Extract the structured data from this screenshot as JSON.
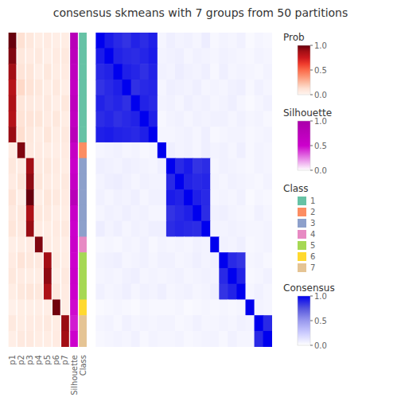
{
  "chart_data": {
    "type": "heatmap",
    "title": "consensus skmeans with 7 groups from 50 partitions",
    "grid": false,
    "color_bar": "Consensus",
    "values": [
      [
        1.0,
        0.92,
        0.88,
        0.85,
        0.9,
        0.87,
        0.91,
        0.05,
        0.08,
        0.06,
        0.07,
        0.05,
        0.09,
        0.04,
        0.06,
        0.05,
        0.07,
        0.03,
        0.05,
        0.04
      ],
      [
        0.92,
        1.0,
        0.9,
        0.88,
        0.87,
        0.89,
        0.92,
        0.06,
        0.07,
        0.08,
        0.05,
        0.07,
        0.06,
        0.05,
        0.07,
        0.06,
        0.05,
        0.04,
        0.06,
        0.05
      ],
      [
        0.88,
        0.9,
        1.0,
        0.91,
        0.89,
        0.86,
        0.9,
        0.07,
        0.06,
        0.09,
        0.07,
        0.06,
        0.08,
        0.04,
        0.08,
        0.05,
        0.06,
        0.05,
        0.04,
        0.06
      ],
      [
        0.85,
        0.88,
        0.91,
        1.0,
        0.86,
        0.88,
        0.89,
        0.05,
        0.08,
        0.07,
        0.06,
        0.08,
        0.05,
        0.06,
        0.05,
        0.07,
        0.08,
        0.04,
        0.07,
        0.05
      ],
      [
        0.9,
        0.87,
        0.89,
        0.86,
        1.0,
        0.9,
        0.88,
        0.06,
        0.07,
        0.05,
        0.08,
        0.06,
        0.07,
        0.05,
        0.06,
        0.08,
        0.05,
        0.03,
        0.05,
        0.07
      ],
      [
        0.87,
        0.89,
        0.86,
        0.88,
        0.9,
        1.0,
        0.91,
        0.04,
        0.06,
        0.07,
        0.05,
        0.07,
        0.06,
        0.07,
        0.07,
        0.05,
        0.07,
        0.05,
        0.06,
        0.04
      ],
      [
        0.91,
        0.92,
        0.9,
        0.89,
        0.88,
        0.91,
        1.0,
        0.05,
        0.05,
        0.06,
        0.07,
        0.05,
        0.08,
        0.04,
        0.05,
        0.06,
        0.06,
        0.04,
        0.05,
        0.06
      ],
      [
        0.05,
        0.06,
        0.07,
        0.05,
        0.06,
        0.04,
        0.05,
        1.0,
        0.08,
        0.06,
        0.07,
        0.05,
        0.08,
        0.06,
        0.07,
        0.05,
        0.08,
        0.04,
        0.06,
        0.05
      ],
      [
        0.08,
        0.07,
        0.06,
        0.08,
        0.07,
        0.06,
        0.05,
        0.08,
        1.0,
        0.88,
        0.92,
        0.85,
        0.87,
        0.05,
        0.07,
        0.06,
        0.05,
        0.04,
        0.06,
        0.05
      ],
      [
        0.06,
        0.08,
        0.09,
        0.07,
        0.05,
        0.07,
        0.06,
        0.06,
        0.88,
        1.0,
        0.9,
        0.88,
        0.89,
        0.06,
        0.05,
        0.07,
        0.06,
        0.05,
        0.04,
        0.06
      ],
      [
        0.07,
        0.05,
        0.07,
        0.06,
        0.08,
        0.05,
        0.07,
        0.07,
        0.92,
        0.9,
        1.0,
        0.91,
        0.88,
        0.05,
        0.06,
        0.05,
        0.07,
        0.03,
        0.05,
        0.04
      ],
      [
        0.05,
        0.07,
        0.06,
        0.08,
        0.06,
        0.07,
        0.05,
        0.05,
        0.85,
        0.88,
        0.91,
        1.0,
        0.87,
        0.07,
        0.08,
        0.06,
        0.05,
        0.04,
        0.07,
        0.05
      ],
      [
        0.09,
        0.06,
        0.08,
        0.05,
        0.07,
        0.06,
        0.08,
        0.08,
        0.87,
        0.89,
        0.88,
        0.87,
        1.0,
        0.06,
        0.06,
        0.07,
        0.06,
        0.05,
        0.05,
        0.06
      ],
      [
        0.04,
        0.05,
        0.04,
        0.06,
        0.05,
        0.07,
        0.04,
        0.06,
        0.05,
        0.06,
        0.05,
        0.07,
        0.06,
        1.0,
        0.07,
        0.06,
        0.08,
        0.04,
        0.05,
        0.06
      ],
      [
        0.06,
        0.07,
        0.08,
        0.05,
        0.06,
        0.07,
        0.05,
        0.07,
        0.07,
        0.05,
        0.06,
        0.08,
        0.06,
        0.07,
        1.0,
        0.88,
        0.85,
        0.05,
        0.06,
        0.04
      ],
      [
        0.05,
        0.06,
        0.05,
        0.07,
        0.08,
        0.05,
        0.06,
        0.05,
        0.06,
        0.07,
        0.05,
        0.06,
        0.07,
        0.06,
        0.88,
        1.0,
        0.9,
        0.04,
        0.05,
        0.07
      ],
      [
        0.07,
        0.05,
        0.06,
        0.08,
        0.05,
        0.07,
        0.06,
        0.08,
        0.05,
        0.06,
        0.07,
        0.05,
        0.06,
        0.08,
        0.85,
        0.9,
        1.0,
        0.05,
        0.07,
        0.05
      ],
      [
        0.03,
        0.04,
        0.05,
        0.04,
        0.03,
        0.05,
        0.04,
        0.04,
        0.04,
        0.05,
        0.03,
        0.04,
        0.05,
        0.04,
        0.05,
        0.04,
        0.05,
        1.0,
        0.06,
        0.05
      ],
      [
        0.05,
        0.06,
        0.04,
        0.07,
        0.05,
        0.06,
        0.05,
        0.06,
        0.06,
        0.04,
        0.05,
        0.07,
        0.05,
        0.05,
        0.06,
        0.05,
        0.07,
        0.06,
        1.0,
        0.88
      ],
      [
        0.04,
        0.05,
        0.06,
        0.05,
        0.07,
        0.04,
        0.06,
        0.05,
        0.05,
        0.06,
        0.04,
        0.05,
        0.06,
        0.06,
        0.04,
        0.07,
        0.05,
        0.05,
        0.88,
        1.0
      ]
    ],
    "columns": [
      {
        "name": "p1",
        "color_bar": "Prob",
        "values": [
          1.0,
          0.95,
          0.88,
          0.82,
          0.85,
          0.83,
          0.9,
          0.05,
          0.08,
          0.06,
          0.1,
          0.07,
          0.09,
          0.04,
          0.06,
          0.08,
          0.05,
          0.03,
          0.07,
          0.04
        ]
      },
      {
        "name": "p2",
        "color_bar": "Prob",
        "values": [
          0.12,
          0.08,
          0.1,
          0.15,
          0.09,
          0.11,
          0.13,
          0.95,
          0.06,
          0.09,
          0.04,
          0.08,
          0.07,
          0.05,
          0.1,
          0.06,
          0.08,
          0.04,
          0.05,
          0.07
        ]
      },
      {
        "name": "p3",
        "color_bar": "Prob",
        "values": [
          0.08,
          0.06,
          0.09,
          0.11,
          0.07,
          0.1,
          0.08,
          0.07,
          0.88,
          0.92,
          1.0,
          0.85,
          0.9,
          0.06,
          0.08,
          0.05,
          0.09,
          0.04,
          0.06,
          0.07
        ]
      },
      {
        "name": "p4",
        "color_bar": "Prob",
        "values": [
          0.05,
          0.07,
          0.04,
          0.08,
          0.06,
          0.09,
          0.05,
          0.06,
          0.07,
          0.09,
          0.05,
          0.08,
          0.06,
          0.95,
          0.07,
          0.05,
          0.08,
          0.04,
          0.06,
          0.05
        ]
      },
      {
        "name": "p5",
        "color_bar": "Prob",
        "values": [
          0.06,
          0.04,
          0.08,
          0.05,
          0.07,
          0.06,
          0.09,
          0.05,
          0.08,
          0.06,
          0.09,
          0.07,
          0.05,
          0.06,
          0.88,
          0.92,
          0.85,
          0.04,
          0.07,
          0.05
        ]
      },
      {
        "name": "p6",
        "color_bar": "Prob",
        "values": [
          0.04,
          0.06,
          0.05,
          0.07,
          0.04,
          0.08,
          0.05,
          0.04,
          0.06,
          0.05,
          0.07,
          0.04,
          0.06,
          0.05,
          0.06,
          0.04,
          0.07,
          0.98,
          0.05,
          0.06
        ]
      },
      {
        "name": "p7",
        "color_bar": "Prob",
        "values": [
          0.05,
          0.07,
          0.06,
          0.04,
          0.08,
          0.05,
          0.07,
          0.06,
          0.05,
          0.07,
          0.06,
          0.05,
          0.07,
          0.04,
          0.05,
          0.07,
          0.06,
          0.05,
          0.9,
          0.88
        ]
      },
      {
        "name": "Silhouette",
        "color_bar": "Silhouette",
        "values": [
          0.8,
          0.75,
          0.7,
          0.65,
          0.72,
          0.68,
          0.78,
          0.6,
          0.55,
          0.62,
          0.8,
          0.58,
          0.52,
          0.55,
          0.5,
          0.55,
          0.52,
          0.48,
          0.45,
          0.5
        ]
      },
      {
        "name": "Class",
        "color_bar": "Class",
        "values": [
          0,
          0,
          0,
          0,
          0,
          0,
          0,
          1,
          2,
          2,
          2,
          2,
          2,
          3,
          4,
          4,
          4,
          5,
          6,
          6
        ]
      }
    ],
    "color_bars": [
      {
        "name": "Prob",
        "type": "continuous",
        "colors": [
          "#FFF5F0",
          "#FEE0D2",
          "#FCBBA1",
          "#FC9272",
          "#FB6A4A",
          "#EF3B2C",
          "#CB181D",
          "#A50F15",
          "#67000D"
        ],
        "range": [
          0,
          1
        ],
        "ticks": [
          {
            "value": 0,
            "label": "0.0"
          },
          {
            "value": 0.5,
            "label": "0.5"
          },
          {
            "value": 1,
            "label": "1.0"
          }
        ]
      },
      {
        "name": "Silhouette",
        "type": "continuous",
        "colors": [
          "#FFFFFF",
          "#CC00CC",
          "#AA00AA"
        ],
        "range": [
          0,
          1
        ],
        "ticks": [
          {
            "value": 0,
            "label": "0.0"
          },
          {
            "value": 0.5,
            "label": "0.5"
          },
          {
            "value": 1,
            "label": "1.0"
          }
        ]
      },
      {
        "name": "Class",
        "type": "categorical",
        "colors": [
          "#66C2A5",
          "#FC8D62",
          "#8DA0CB",
          "#E78AC3",
          "#A6D854",
          "#FFD92F",
          "#E5C494"
        ],
        "labels": [
          "1",
          "2",
          "3",
          "4",
          "5",
          "6",
          "7"
        ]
      },
      {
        "name": "Consensus",
        "type": "continuous",
        "colors": [
          "#FFFFFF",
          "#CCCCFF",
          "#9999EE",
          "#5555DD",
          "#0000EE"
        ],
        "range": [
          0,
          1
        ],
        "ticks": [
          {
            "value": 0,
            "label": "0.0"
          },
          {
            "value": 0.5,
            "label": "0.5"
          },
          {
            "value": 1,
            "label": "1.0"
          }
        ]
      }
    ]
  }
}
